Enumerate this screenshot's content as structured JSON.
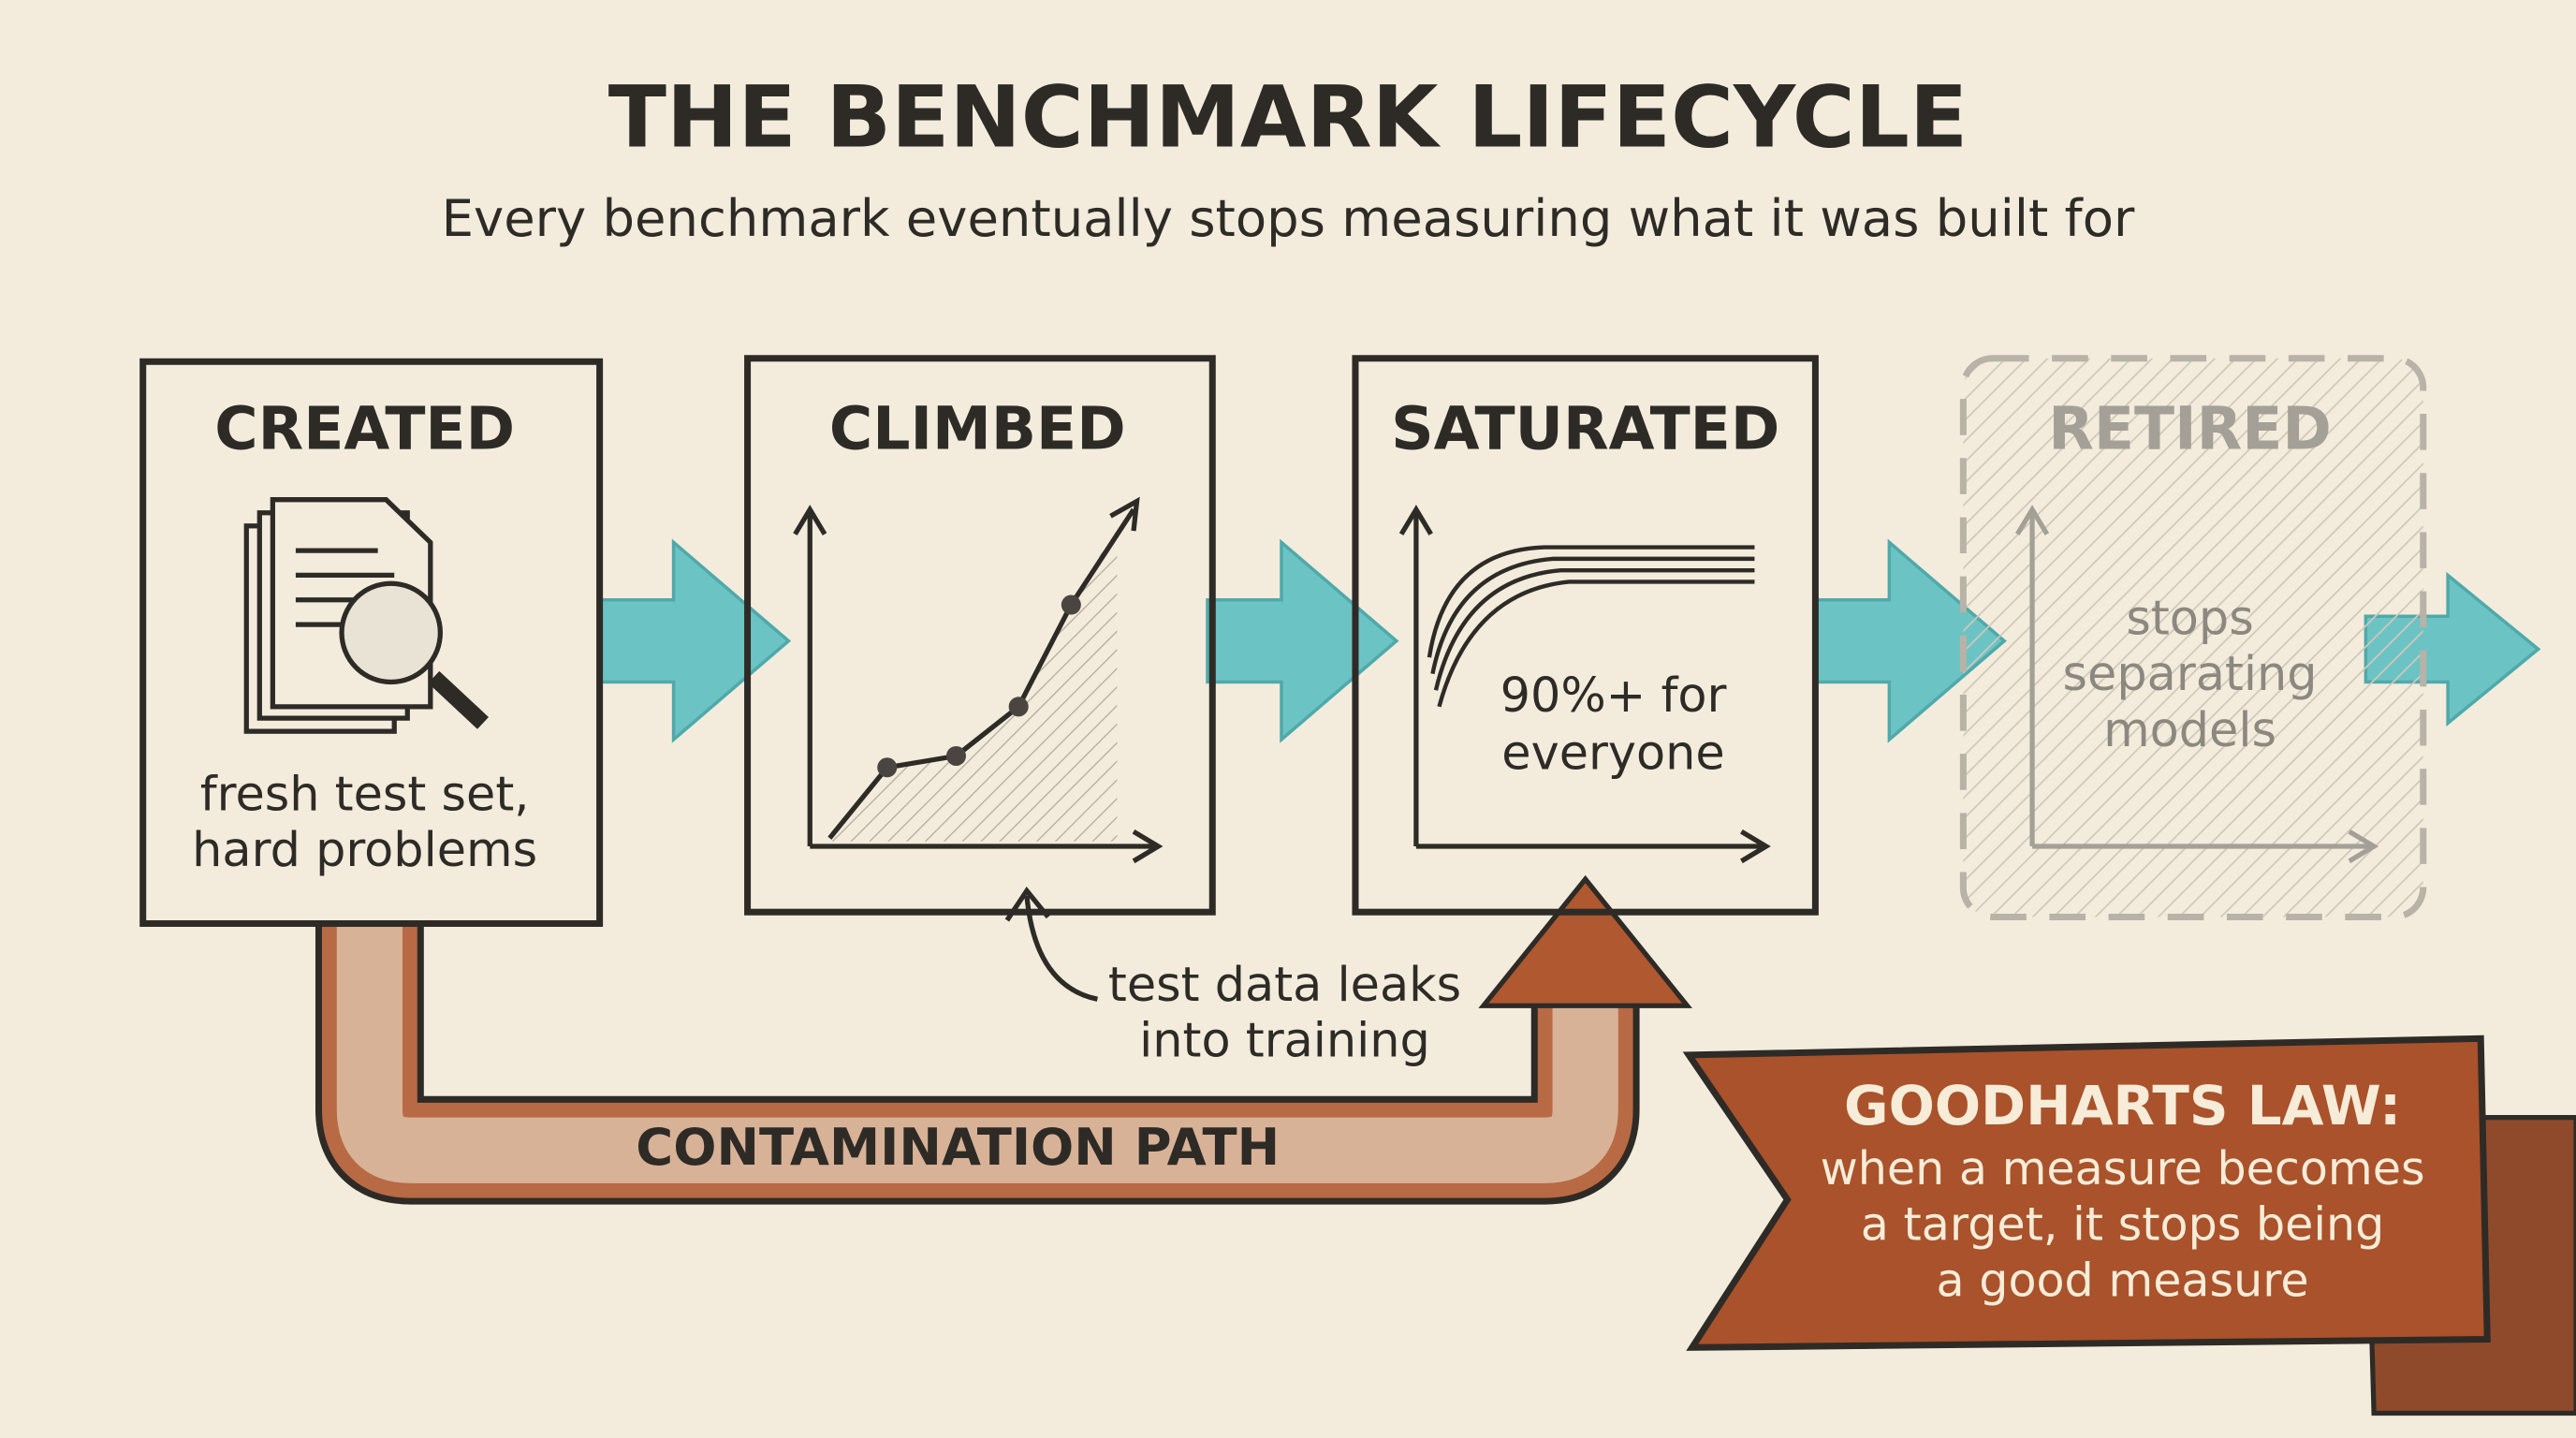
{
  "title": "THE BENCHMARK LIFECYCLE",
  "subtitle": "Every benchmark eventually stops measuring what it was built for",
  "stages": [
    {
      "label": "CREATED",
      "caption": [
        "fresh test set,",
        "hard problems"
      ]
    },
    {
      "label": "CLIMBED"
    },
    {
      "label": "SATURATED",
      "caption": [
        "90%+ for",
        "everyone"
      ]
    },
    {
      "label": "RETIRED",
      "caption": [
        "stops",
        "separating",
        "models"
      ]
    }
  ],
  "contamination": {
    "label": "CONTAMINATION PATH",
    "note": [
      "test data leaks",
      "into training"
    ]
  },
  "callout": {
    "title": "GOODHARTS LAW:",
    "text": [
      "when a measure becomes",
      "a target, it stops being",
      "a good measure"
    ]
  }
}
